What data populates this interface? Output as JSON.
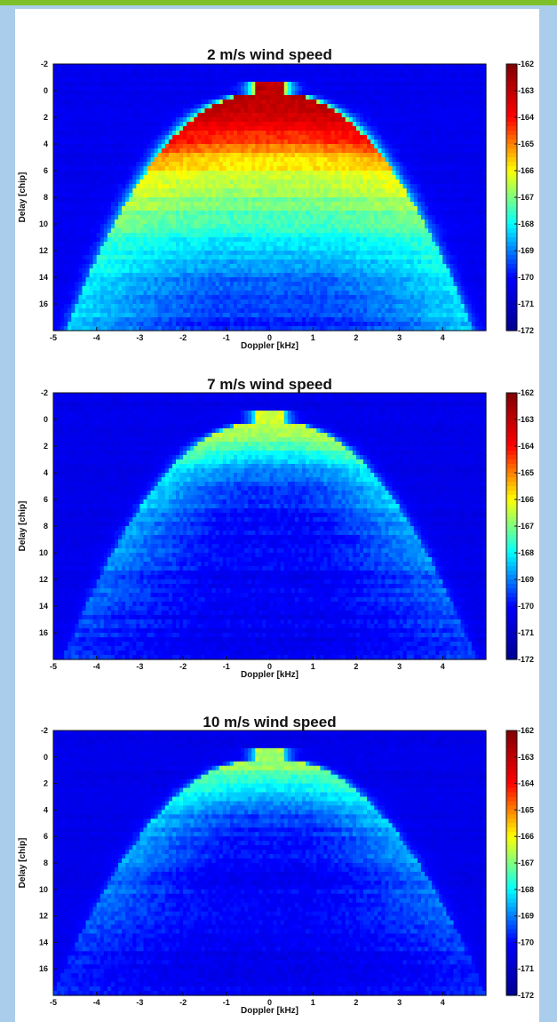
{
  "colorbar": {
    "min": -172,
    "max": -162,
    "ticks": [
      "-162",
      "-163",
      "-164",
      "-165",
      "-166",
      "-167",
      "-168",
      "-169",
      "-170",
      "-171",
      "-172"
    ],
    "colormap": [
      "#00008f",
      "#0000ff",
      "#00ffff",
      "#ffff00",
      "#ff0000",
      "#800000"
    ]
  },
  "axes": {
    "xlabel": "Doppler [kHz]",
    "ylabel": "Delay [chip]",
    "xticks": [
      "-5",
      "-4",
      "-3",
      "-2",
      "-1",
      "0",
      "1",
      "2",
      "3",
      "4"
    ],
    "yticks": [
      "-2",
      "0",
      "2",
      "4",
      "6",
      "8",
      "10",
      "12",
      "14",
      "16"
    ],
    "xlim": [
      -5,
      5
    ],
    "ylim": [
      -2,
      18
    ]
  },
  "chart_data": [
    {
      "type": "heatmap",
      "title": "2 m/s wind speed",
      "xlabel": "Doppler [kHz]",
      "ylabel": "Delay [chip]",
      "xlim": [
        -5,
        5
      ],
      "ylim": [
        -2,
        18
      ],
      "y_inverted": true,
      "colorbar_range": [
        -172,
        -162
      ],
      "background_level": -170.3,
      "peak_level": -162.5,
      "horseshoe": {
        "vertex_delay_chip": 0.3,
        "arm_end_delay_chip": 17,
        "arm_end_doppler_khz": 4.25
      },
      "edge_level_profile": [
        {
          "delay_chip": 0.3,
          "level": -162.5
        },
        {
          "delay_chip": 2,
          "level": -163.4
        },
        {
          "delay_chip": 4,
          "level": -164.2
        },
        {
          "delay_chip": 6,
          "level": -165.8
        },
        {
          "delay_chip": 8,
          "level": -166.5
        },
        {
          "delay_chip": 10,
          "level": -167.2
        },
        {
          "delay_chip": 12,
          "level": -167.8
        },
        {
          "delay_chip": 14,
          "level": -168.0
        },
        {
          "delay_chip": 16,
          "level": -168.2
        },
        {
          "delay_chip": 17.5,
          "level": -168.3
        }
      ],
      "interior_level_profile": [
        {
          "delay_chip": 1,
          "level": -163.0
        },
        {
          "delay_chip": 3,
          "level": -164.0
        },
        {
          "delay_chip": 5,
          "level": -165.6
        },
        {
          "delay_chip": 7,
          "level": -166.6
        },
        {
          "delay_chip": 9,
          "level": -167.3
        },
        {
          "delay_chip": 11,
          "level": -168.0
        },
        {
          "delay_chip": 13,
          "level": -168.8
        },
        {
          "delay_chip": 15,
          "level": -169.3
        },
        {
          "delay_chip": 17.5,
          "level": -169.7
        }
      ]
    },
    {
      "type": "heatmap",
      "title": "7 m/s wind speed",
      "xlabel": "Doppler [kHz]",
      "ylabel": "Delay [chip]",
      "xlim": [
        -5,
        5
      ],
      "ylim": [
        -2,
        18
      ],
      "y_inverted": true,
      "colorbar_range": [
        -172,
        -162
      ],
      "background_level": -170.4,
      "peak_level": -166.2,
      "horseshoe": {
        "vertex_delay_chip": 0.3,
        "arm_end_delay_chip": 17,
        "arm_end_doppler_khz": 4.3
      },
      "edge_level_profile": [
        {
          "delay_chip": 0.3,
          "level": -166.2
        },
        {
          "delay_chip": 2,
          "level": -167.0
        },
        {
          "delay_chip": 4,
          "level": -168.0
        },
        {
          "delay_chip": 6,
          "level": -168.3
        },
        {
          "delay_chip": 8,
          "level": -168.5
        },
        {
          "delay_chip": 10,
          "level": -168.8
        },
        {
          "delay_chip": 12,
          "level": -169.1
        },
        {
          "delay_chip": 14,
          "level": -169.3
        },
        {
          "delay_chip": 16,
          "level": -169.5
        },
        {
          "delay_chip": 17.5,
          "level": -169.6
        }
      ],
      "interior_level_profile": [
        {
          "delay_chip": 1,
          "level": -166.6
        },
        {
          "delay_chip": 3,
          "level": -168.4
        },
        {
          "delay_chip": 5,
          "level": -169.5
        },
        {
          "delay_chip": 7,
          "level": -169.9
        },
        {
          "delay_chip": 10,
          "level": -170.1
        },
        {
          "delay_chip": 13,
          "level": -170.2
        },
        {
          "delay_chip": 17.5,
          "level": -170.3
        }
      ]
    },
    {
      "type": "heatmap",
      "title": "10 m/s wind speed",
      "xlabel": "Doppler [kHz]",
      "ylabel": "Delay [chip]",
      "xlim": [
        -5,
        5
      ],
      "ylim": [
        -2,
        18
      ],
      "y_inverted": true,
      "colorbar_range": [
        -172,
        -162
      ],
      "background_level": -170.4,
      "peak_level": -166.6,
      "horseshoe": {
        "vertex_delay_chip": 0.3,
        "arm_end_delay_chip": 17.5,
        "arm_end_doppler_khz": 4.6
      },
      "edge_level_profile": [
        {
          "delay_chip": 0.3,
          "level": -166.6
        },
        {
          "delay_chip": 2,
          "level": -167.5
        },
        {
          "delay_chip": 4,
          "level": -168.3
        },
        {
          "delay_chip": 6,
          "level": -168.6
        },
        {
          "delay_chip": 8,
          "level": -168.8
        },
        {
          "delay_chip": 10,
          "level": -169.0
        },
        {
          "delay_chip": 12,
          "level": -169.3
        },
        {
          "delay_chip": 14,
          "level": -169.5
        },
        {
          "delay_chip": 16,
          "level": -169.7
        },
        {
          "delay_chip": 17.5,
          "level": -169.8
        }
      ],
      "interior_level_profile": [
        {
          "delay_chip": 1,
          "level": -167.0
        },
        {
          "delay_chip": 3,
          "level": -168.7
        },
        {
          "delay_chip": 5,
          "level": -169.7
        },
        {
          "delay_chip": 8,
          "level": -170.1
        },
        {
          "delay_chip": 12,
          "level": -170.2
        },
        {
          "delay_chip": 17.5,
          "level": -170.3
        }
      ]
    }
  ]
}
